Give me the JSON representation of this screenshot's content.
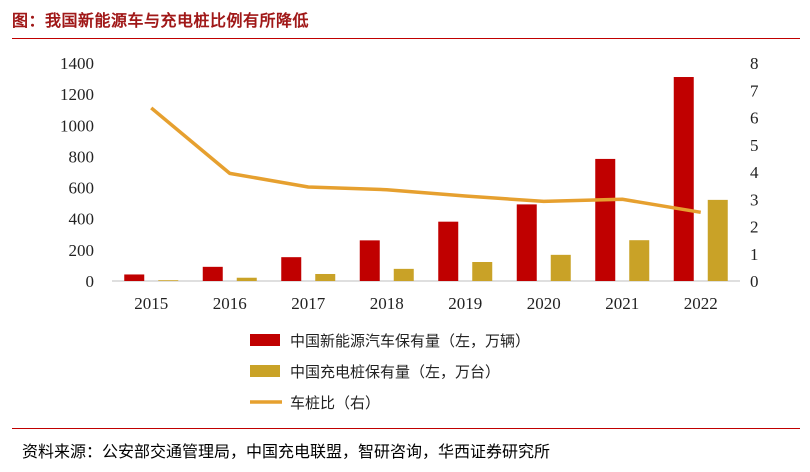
{
  "title": "图：我国新能源车与充电桩比例有所降低",
  "source": "资料来源：公安部交通管理局，中国充电联盟，智研咨询，华西证券研究所",
  "colors": {
    "ev": "#c00000",
    "pile": "#c9a227",
    "ratio": "#e6a02f",
    "rule": "#c00000",
    "title": "#a01818"
  },
  "chart_data": {
    "type": "bar",
    "categories": [
      "2015",
      "2016",
      "2017",
      "2018",
      "2019",
      "2020",
      "2021",
      "2022"
    ],
    "series": [
      {
        "name": "中国新能源汽车保有量（左，万辆）",
        "type": "bar",
        "axis": "left",
        "values": [
          42,
          91,
          153,
          261,
          381,
          492,
          784,
          1310
        ]
      },
      {
        "name": "中国充电桩保有量（左，万台）",
        "type": "bar",
        "axis": "left",
        "values": [
          5,
          21,
          45,
          78,
          122,
          168,
          262,
          521
        ]
      },
      {
        "name": "车桩比（右）",
        "type": "line",
        "axis": "right",
        "values": [
          6.35,
          3.95,
          3.45,
          3.35,
          3.12,
          2.92,
          3.0,
          2.52
        ]
      }
    ],
    "y_left": {
      "min": 0,
      "max": 1400,
      "ticks": [
        "0",
        "200",
        "400",
        "600",
        "800",
        "1000",
        "1200",
        "1400"
      ]
    },
    "y_right": {
      "min": 0,
      "max": 8,
      "ticks": [
        "0",
        "1",
        "2",
        "3",
        "4",
        "5",
        "6",
        "7",
        "8"
      ]
    }
  }
}
